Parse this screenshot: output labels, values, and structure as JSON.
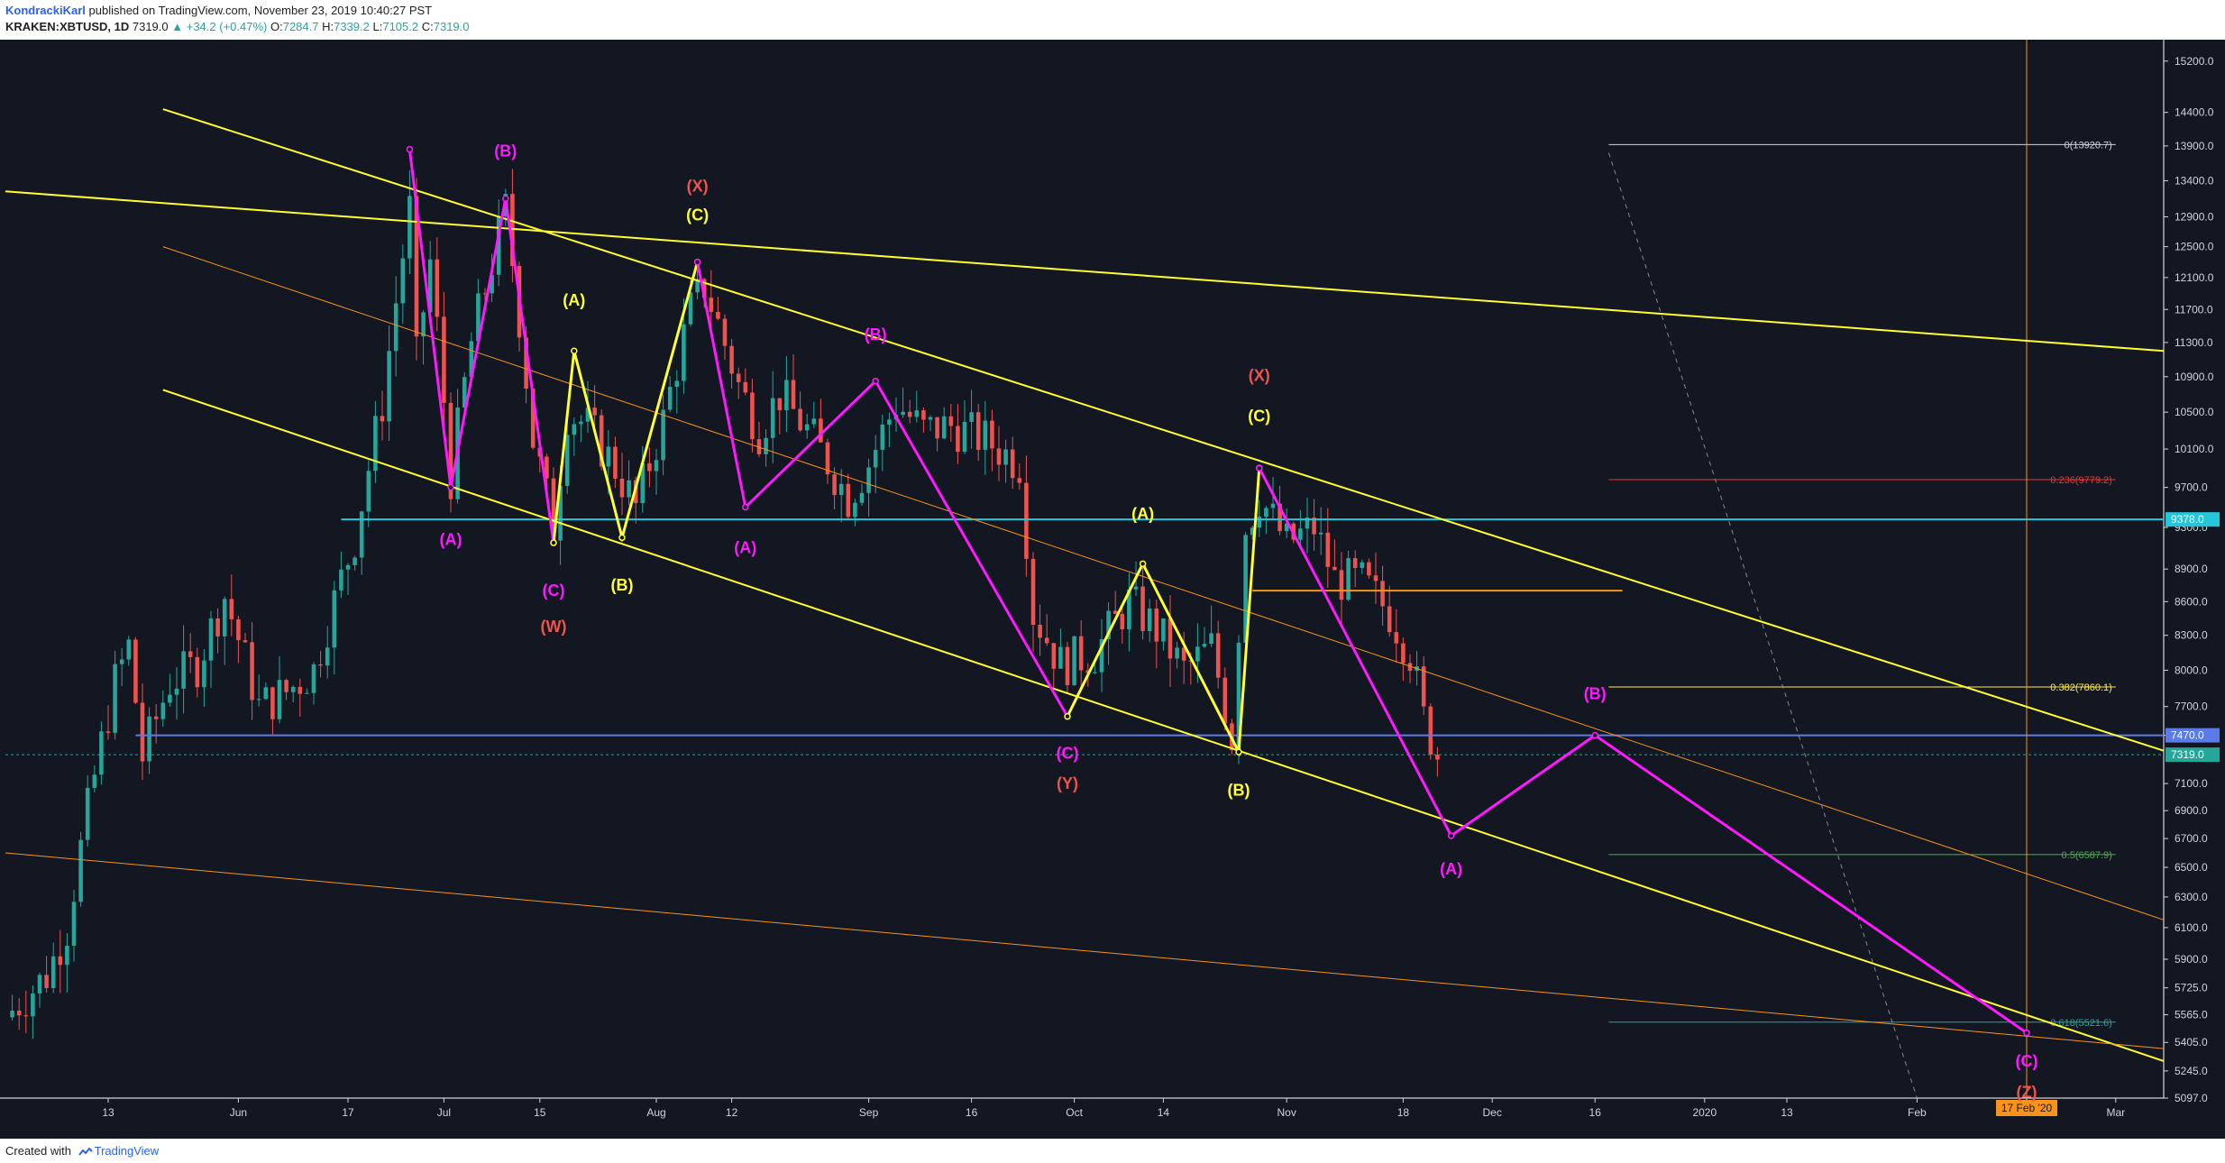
{
  "header": {
    "author": "KondrackiKarl",
    "published": "published on TradingView.com, November 23, 2019 10:40:27 PST",
    "symbol": "KRAKEN:XBTUSD, 1D",
    "last": "7319.0",
    "change": "▲ +34.2 (+0.47%)",
    "o_label": "O:",
    "o": "7284.7",
    "h_label": "H:",
    "h": "7339.2",
    "l_label": "L:",
    "l": "7105.2",
    "c_label": "C:",
    "c": "7319.0"
  },
  "footer": {
    "created_with": "Created with",
    "brand": "TradingView"
  },
  "colors": {
    "background": "#131722",
    "bull": "#26a69a",
    "bear": "#ef5350",
    "trendline": "#ffff33",
    "orange": "#f7931a",
    "magenta": "#ff19ff",
    "cyan": "#26c6da",
    "blue": "#5b7ce8",
    "red_label": "#ef5350",
    "green_fib": "#4caf50"
  },
  "chart_data": {
    "type": "candlestick",
    "y_scale": "log",
    "ylim": [
      5097,
      15400
    ],
    "xlim": [
      "2019-04-28",
      "2020-03-08"
    ],
    "y_ticks": [
      "15200.0",
      "14400.0",
      "13900.0",
      "13400.0",
      "12900.0",
      "12500.0",
      "12100.0",
      "11700.0",
      "11300.0",
      "10900.0",
      "10500.0",
      "10100.0",
      "9700.0",
      "9300.0",
      "8900.0",
      "8600.0",
      "8300.0",
      "8000.0",
      "7700.0",
      "7470.0",
      "7100.0",
      "6900.0",
      "6700.0",
      "6500.0",
      "6300.0",
      "6100.0",
      "5900.0",
      "5725.0",
      "5565.0",
      "5405.0",
      "5245.0",
      "5097.0"
    ],
    "x_ticks": [
      {
        "label": "13",
        "date": "2019-05-13"
      },
      {
        "label": "Jun",
        "date": "2019-06-01"
      },
      {
        "label": "17",
        "date": "2019-06-17"
      },
      {
        "label": "Jul",
        "date": "2019-07-01"
      },
      {
        "label": "15",
        "date": "2019-07-15"
      },
      {
        "label": "Aug",
        "date": "2019-08-01"
      },
      {
        "label": "12",
        "date": "2019-08-12"
      },
      {
        "label": "Sep",
        "date": "2019-09-01"
      },
      {
        "label": "16",
        "date": "2019-09-16"
      },
      {
        "label": "Oct",
        "date": "2019-10-01"
      },
      {
        "label": "14",
        "date": "2019-10-14"
      },
      {
        "label": "Nov",
        "date": "2019-11-01"
      },
      {
        "label": "18",
        "date": "2019-11-18"
      },
      {
        "label": "Dec",
        "date": "2019-12-01"
      },
      {
        "label": "16",
        "date": "2019-12-16"
      },
      {
        "label": "2020",
        "date": "2020-01-01"
      },
      {
        "label": "13",
        "date": "2020-01-13"
      },
      {
        "label": "Feb",
        "date": "2020-02-01"
      },
      {
        "label": "17",
        "date": "2020-02-17"
      },
      {
        "label": "Mar",
        "date": "2020-03-01"
      }
    ],
    "price_anchors": [
      [
        "2019-04-28",
        5550
      ],
      [
        "2019-05-04",
        5800
      ],
      [
        "2019-05-07",
        6100
      ],
      [
        "2019-05-10",
        6900
      ],
      [
        "2019-05-14",
        7900
      ],
      [
        "2019-05-16",
        8200
      ],
      [
        "2019-05-18",
        7300
      ],
      [
        "2019-05-22",
        7900
      ],
      [
        "2019-05-26",
        8050
      ],
      [
        "2019-05-30",
        8650
      ],
      [
        "2019-06-04",
        7700
      ],
      [
        "2019-06-08",
        7820
      ],
      [
        "2019-06-12",
        8000
      ],
      [
        "2019-06-18",
        9200
      ],
      [
        "2019-06-22",
        10600
      ],
      [
        "2019-06-26",
        13000
      ],
      [
        "2019-06-27",
        11100
      ],
      [
        "2019-06-29",
        12300
      ],
      [
        "2019-07-02",
        9800
      ],
      [
        "2019-07-05",
        11300
      ],
      [
        "2019-07-08",
        12300
      ],
      [
        "2019-07-10",
        13000
      ],
      [
        "2019-07-14",
        10200
      ],
      [
        "2019-07-17",
        9300
      ],
      [
        "2019-07-19",
        10500
      ],
      [
        "2019-07-22",
        10350
      ],
      [
        "2019-07-26",
        9900
      ],
      [
        "2019-07-29",
        9500
      ],
      [
        "2019-08-02",
        10400
      ],
      [
        "2019-08-06",
        11700
      ],
      [
        "2019-08-08",
        12000
      ],
      [
        "2019-08-13",
        10800
      ],
      [
        "2019-08-16",
        10300
      ],
      [
        "2019-08-19",
        10700
      ],
      [
        "2019-08-24",
        10200
      ],
      [
        "2019-08-29",
        9600
      ],
      [
        "2019-09-01",
        9950
      ],
      [
        "2019-09-05",
        10600
      ],
      [
        "2019-09-09",
        10300
      ],
      [
        "2019-09-13",
        10350
      ],
      [
        "2019-09-18",
        10200
      ],
      [
        "2019-09-23",
        9950
      ],
      [
        "2019-09-25",
        8500
      ],
      [
        "2019-09-29",
        8050
      ],
      [
        "2019-10-04",
        8150
      ],
      [
        "2019-10-09",
        8600
      ],
      [
        "2019-10-13",
        8350
      ],
      [
        "2019-10-17",
        8000
      ],
      [
        "2019-10-21",
        8200
      ],
      [
        "2019-10-24",
        7450
      ],
      [
        "2019-10-26",
        9300
      ],
      [
        "2019-10-28",
        9600
      ],
      [
        "2019-11-01",
        9150
      ],
      [
        "2019-11-05",
        9300
      ],
      [
        "2019-11-08",
        8800
      ],
      [
        "2019-11-12",
        8780
      ],
      [
        "2019-11-16",
        8500
      ],
      [
        "2019-11-19",
        8150
      ],
      [
        "2019-11-21",
        7600
      ],
      [
        "2019-11-23",
        7319
      ]
    ],
    "candle_range": [
      "2019-04-29",
      "2019-11-23"
    ],
    "horizontal_levels": [
      {
        "price": 9378,
        "from": "2019-06-16",
        "color": "cyan",
        "tag": "9378.0"
      },
      {
        "price": 7470,
        "from": "2019-05-17",
        "color": "blue",
        "tag": "7470.0"
      },
      {
        "price": 8700,
        "from": "2019-10-27",
        "to": "2019-12-20",
        "color": "orange"
      },
      {
        "price": 7319,
        "from": "2019-04-28",
        "color": "bull",
        "dashed": true,
        "tag": "7319.0"
      }
    ],
    "fib_retracement": {
      "from": "2019-12-18",
      "to": "2020-03-01",
      "levels": [
        {
          "ratio": "0",
          "price": 13920.7,
          "label": "0(13920.7)",
          "color": "#d1d4dc"
        },
        {
          "ratio": "0.236",
          "price": 9779.2,
          "label": "0.236(9779.2)",
          "color": "#e53935"
        },
        {
          "ratio": "0.382",
          "price": 7860.1,
          "label": "0.382(7860.1)",
          "color": "#ffeb3b"
        },
        {
          "ratio": "0.5",
          "price": 6587.9,
          "label": "0.5(6587.9)",
          "color": "#4caf50"
        },
        {
          "ratio": "0.618",
          "price": 5521.6,
          "label": "0.618(5521.6)",
          "color": "#26a69a"
        }
      ]
    },
    "vertical_marker": {
      "date": "2020-02-17",
      "label": "17 Feb '20"
    },
    "trendlines": [
      {
        "color": "trendline",
        "points": [
          [
            "2019-04-28",
            13250
          ],
          [
            "2020-03-08",
            11200
          ]
        ]
      },
      {
        "color": "trendline",
        "points": [
          [
            "2019-05-21",
            14450
          ],
          [
            "2020-03-08",
            7350
          ]
        ]
      },
      {
        "color": "trendline",
        "points": [
          [
            "2019-05-21",
            10750
          ],
          [
            "2020-03-08",
            5300
          ]
        ]
      },
      {
        "color": "orange",
        "width": 1,
        "points": [
          [
            "2019-05-21",
            12500
          ],
          [
            "2020-03-08",
            6150
          ]
        ]
      },
      {
        "color": "orange",
        "width": 1,
        "points": [
          [
            "2019-04-28",
            6600
          ],
          [
            "2020-03-08",
            5370
          ]
        ]
      },
      {
        "color": "#888888",
        "width": 1,
        "dashed": true,
        "points": [
          [
            "2019-12-18",
            13800
          ],
          [
            "2020-02-01",
            5097
          ]
        ]
      }
    ],
    "waves": [
      {
        "color": "magenta",
        "points": [
          [
            "2019-06-26",
            13850
          ],
          [
            "2019-07-02",
            9700
          ],
          [
            "2019-07-10",
            13150
          ],
          [
            "2019-07-17",
            9150
          ]
        ]
      },
      {
        "color": "trendline",
        "points": [
          [
            "2019-07-17",
            9150
          ],
          [
            "2019-07-20",
            11200
          ],
          [
            "2019-07-27",
            9200
          ],
          [
            "2019-08-07",
            12300
          ]
        ]
      },
      {
        "color": "magenta",
        "points": [
          [
            "2019-08-07",
            12300
          ],
          [
            "2019-08-14",
            9500
          ],
          [
            "2019-09-02",
            10850
          ],
          [
            "2019-09-30",
            7620
          ]
        ]
      },
      {
        "color": "trendline",
        "points": [
          [
            "2019-09-30",
            7620
          ],
          [
            "2019-10-11",
            8950
          ],
          [
            "2019-10-25",
            7340
          ],
          [
            "2019-10-28",
            9900
          ]
        ]
      },
      {
        "color": "magenta",
        "points": [
          [
            "2019-10-28",
            9900
          ],
          [
            "2019-11-25",
            6720
          ],
          [
            "2019-12-16",
            7470
          ],
          [
            "2020-02-17",
            5460
          ]
        ]
      }
    ],
    "annotations": [
      {
        "text": "(B)",
        "date": "2019-07-10",
        "price": 13750,
        "color": "magenta"
      },
      {
        "text": "(A)",
        "date": "2019-07-02",
        "price": 9130,
        "color": "magenta"
      },
      {
        "text": "(C)",
        "date": "2019-07-17",
        "price": 8650,
        "color": "magenta"
      },
      {
        "text": "(W)",
        "date": "2019-07-17",
        "price": 8330,
        "color": "red_label"
      },
      {
        "text": "(A)",
        "date": "2019-07-20",
        "price": 11750,
        "color": "trendline"
      },
      {
        "text": "(B)",
        "date": "2019-07-27",
        "price": 8700,
        "color": "trendline"
      },
      {
        "text": "(X)",
        "date": "2019-08-07",
        "price": 13250,
        "color": "red_label"
      },
      {
        "text": "(C)",
        "date": "2019-08-07",
        "price": 12850,
        "color": "trendline"
      },
      {
        "text": "(A)",
        "date": "2019-08-14",
        "price": 9050,
        "color": "magenta"
      },
      {
        "text": "(B)",
        "date": "2019-09-02",
        "price": 11330,
        "color": "magenta"
      },
      {
        "text": "(C)",
        "date": "2019-09-30",
        "price": 7290,
        "color": "magenta"
      },
      {
        "text": "(Y)",
        "date": "2019-09-30",
        "price": 7060,
        "color": "red_label"
      },
      {
        "text": "(A)",
        "date": "2019-10-11",
        "price": 9380,
        "color": "trendline"
      },
      {
        "text": "(B)",
        "date": "2019-10-25",
        "price": 7010,
        "color": "trendline"
      },
      {
        "text": "(X)",
        "date": "2019-10-28",
        "price": 10850,
        "color": "red_label"
      },
      {
        "text": "(C)",
        "date": "2019-10-28",
        "price": 10400,
        "color": "trendline"
      },
      {
        "text": "(A)",
        "date": "2019-11-25",
        "price": 6450,
        "color": "magenta"
      },
      {
        "text": "(B)",
        "date": "2019-12-16",
        "price": 7760,
        "color": "magenta"
      },
      {
        "text": "(C)",
        "date": "2020-02-17",
        "price": 5270,
        "color": "magenta"
      },
      {
        "text": "(Z)",
        "date": "2020-02-17",
        "price": 5100,
        "color": "red_label"
      }
    ]
  }
}
